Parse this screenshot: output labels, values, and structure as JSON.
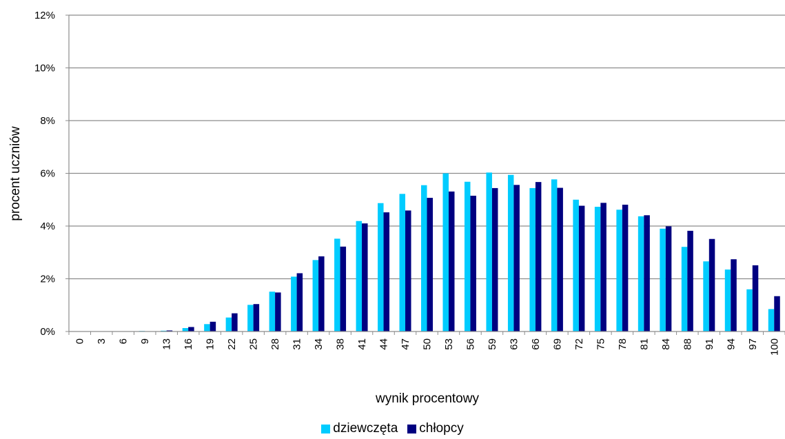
{
  "chart_data": {
    "type": "bar",
    "xlabel": "wynik procentowy",
    "ylabel": "procent uczniów",
    "ylim": [
      0,
      12
    ],
    "y_ticks": [
      "0%",
      "2%",
      "4%",
      "6%",
      "8%",
      "10%",
      "12%"
    ],
    "grid": true,
    "legend_position": "bottom",
    "categories": [
      "0",
      "3",
      "6",
      "9",
      "13",
      "16",
      "19",
      "22",
      "25",
      "28",
      "31",
      "34",
      "38",
      "41",
      "44",
      "47",
      "50",
      "53",
      "56",
      "59",
      "63",
      "66",
      "69",
      "72",
      "75",
      "78",
      "81",
      "84",
      "88",
      "91",
      "94",
      "97",
      "100"
    ],
    "series": [
      {
        "name": "dziewczęta",
        "color": "#00ccff",
        "values": [
          0,
          0,
          0,
          0.02,
          0.03,
          0.13,
          0.28,
          0.53,
          1.01,
          1.51,
          2.08,
          2.71,
          3.52,
          4.19,
          4.87,
          5.22,
          5.55,
          6.0,
          5.68,
          6.03,
          5.94,
          5.44,
          5.77,
          5.0,
          4.73,
          4.62,
          4.37,
          3.9,
          3.21,
          2.66,
          2.35,
          1.6,
          0.85
        ]
      },
      {
        "name": "chłopcy",
        "color": "#000080",
        "values": [
          0,
          0,
          0,
          0.01,
          0.04,
          0.17,
          0.37,
          0.69,
          1.04,
          1.48,
          2.21,
          2.85,
          3.22,
          4.1,
          4.52,
          4.59,
          5.07,
          5.31,
          5.15,
          5.44,
          5.56,
          5.67,
          5.45,
          4.77,
          4.88,
          4.81,
          4.41,
          3.99,
          3.82,
          3.51,
          2.74,
          2.51,
          1.34
        ]
      }
    ]
  }
}
